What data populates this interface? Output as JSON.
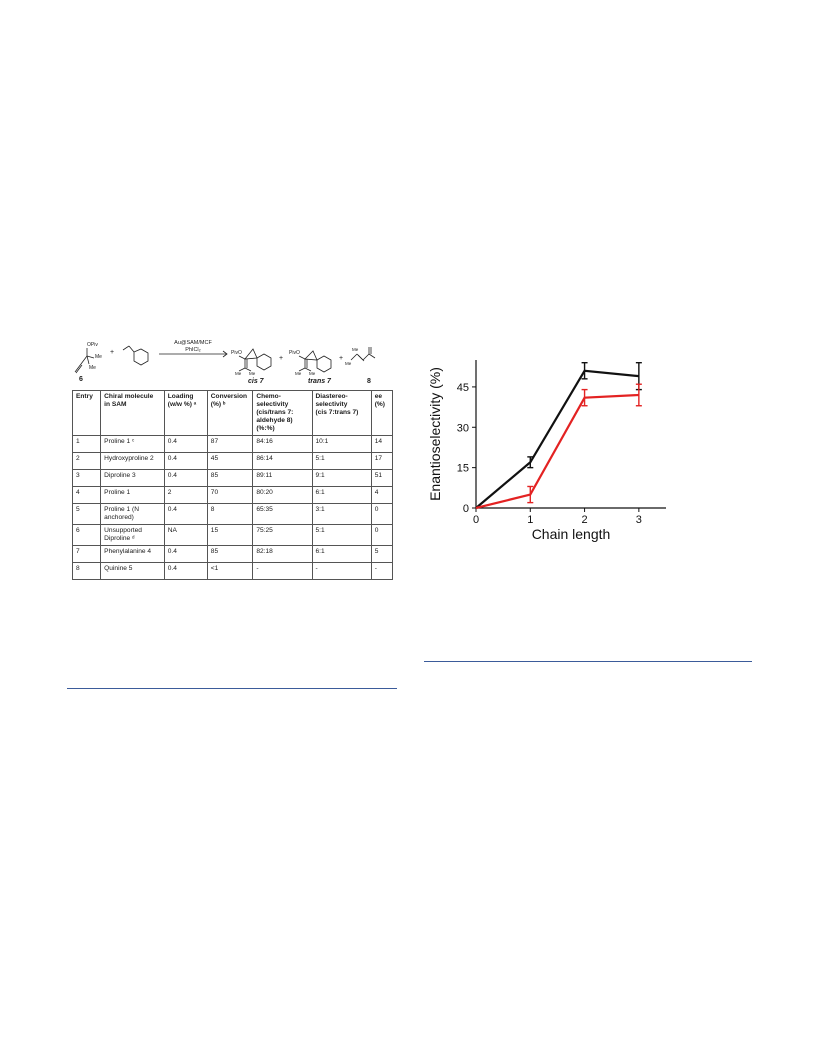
{
  "scheme": {
    "reactant_label": "6",
    "reactant_groups": [
      "OPiv",
      "Me",
      "Me"
    ],
    "conditions_top": "Au@SAM/MCF",
    "conditions_bottom": "PhICl₂",
    "product_cis_group": "PivO",
    "product_cis_label": "cis 7",
    "product_trans_group": "PivO",
    "product_trans_label": "trans 7",
    "product_side_label": "8",
    "me_label": "Me",
    "plus": "+"
  },
  "table": {
    "headers": [
      [
        "Entry"
      ],
      [
        "Chiral molecule",
        "in SAM"
      ],
      [
        "Loading",
        "(w/w %) ᵃ"
      ],
      [
        "Conversion",
        "(%) ᵇ"
      ],
      [
        "Chemo-",
        "selectivity",
        "(cis/trans 7:",
        "aldehyde 8)",
        "(%:%)"
      ],
      [
        "Diastereo-",
        "selectivity",
        "(cis 7:trans 7)"
      ],
      [
        "ee",
        "(%)"
      ]
    ],
    "rows": [
      [
        "1",
        "Proline 1 ᶜ",
        "0.4",
        "87",
        "84:16",
        "10:1",
        "14"
      ],
      [
        "2",
        "Hydroxyproline 2",
        "0.4",
        "45",
        "86:14",
        "5:1",
        "17"
      ],
      [
        "3",
        "Diproline 3",
        "0.4",
        "85",
        "89:11",
        "9:1",
        "51"
      ],
      [
        "4",
        "Proline 1",
        "2",
        "70",
        "80:20",
        "6:1",
        "4"
      ],
      [
        "5",
        "Proline 1 (N anchored)",
        "0.4",
        "8",
        "65:35",
        "3:1",
        "0"
      ],
      [
        "6",
        "Unsupported Diproline ᵈ",
        "NA",
        "15",
        "75:25",
        "5:1",
        "0"
      ],
      [
        "7",
        "Phenylalanine 4",
        "0.4",
        "85",
        "82:18",
        "6:1",
        "5"
      ],
      [
        "8",
        "Quinine 5",
        "0.4",
        "<1",
        "-",
        "-",
        "-"
      ]
    ]
  },
  "chart_data": {
    "type": "line",
    "xlabel": "Chain length",
    "ylabel": "Enantioselectivity (%)",
    "xlim": [
      0,
      3.5
    ],
    "ylim": [
      0,
      55
    ],
    "xticks": [
      0,
      1,
      2,
      3
    ],
    "yticks": [
      0,
      15,
      30,
      45
    ],
    "series": [
      {
        "color": "#111111",
        "x": [
          0,
          1,
          2,
          3
        ],
        "y": [
          0,
          17,
          51,
          49
        ],
        "err": [
          0,
          2,
          3,
          5
        ]
      },
      {
        "color": "#e32222",
        "x": [
          0,
          1,
          2,
          3
        ],
        "y": [
          0,
          5,
          41,
          42
        ],
        "err": [
          0,
          3,
          3,
          4
        ]
      }
    ]
  }
}
